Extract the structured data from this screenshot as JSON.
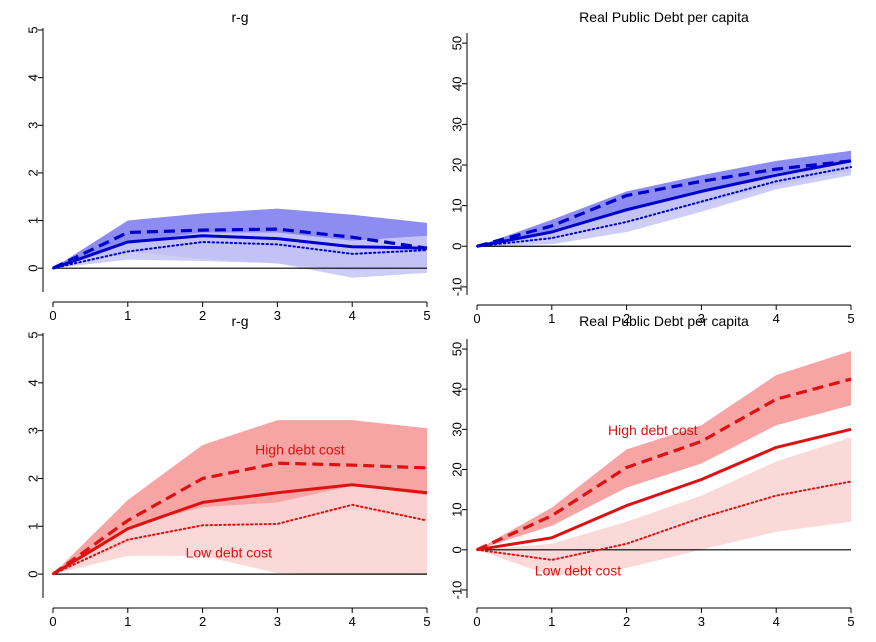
{
  "chart_data": [
    {
      "type": "line",
      "title": "r-g",
      "x": [
        0,
        1,
        2,
        3,
        4,
        5
      ],
      "xlim": [
        0,
        5
      ],
      "ylim": [
        -0.5,
        5
      ],
      "xticks": [
        "0",
        "1",
        "2",
        "3",
        "4",
        "5"
      ],
      "yticks": [
        "0",
        "1",
        "2",
        "3",
        "4",
        "5"
      ],
      "color": "#0000cc",
      "zero_line": true,
      "series": [
        {
          "style": "solid",
          "values": [
            0,
            0.55,
            0.68,
            0.62,
            0.45,
            0.42
          ]
        },
        {
          "style": "dashed",
          "values": [
            0,
            0.75,
            0.8,
            0.82,
            0.65,
            0.42
          ]
        },
        {
          "style": "dotted",
          "values": [
            0,
            0.35,
            0.55,
            0.5,
            0.3,
            0.38
          ]
        }
      ],
      "bands": [
        {
          "color": "#8080f0",
          "lower": [
            0,
            0.35,
            0.2,
            0.1,
            -0.05,
            0.0
          ],
          "upper": [
            0,
            1.0,
            1.15,
            1.25,
            1.12,
            0.95
          ]
        },
        {
          "color": "#c8c8f6",
          "lower": [
            0,
            0.18,
            0.15,
            0.1,
            -0.2,
            -0.1
          ],
          "upper": [
            0,
            0.55,
            0.75,
            0.75,
            0.58,
            0.68
          ]
        }
      ],
      "annotations": []
    },
    {
      "type": "line",
      "title": "Real Public Debt per capita",
      "x": [
        0,
        1,
        2,
        3,
        4,
        5
      ],
      "xlim": [
        0,
        5
      ],
      "ylim": [
        -12,
        52
      ],
      "xticks": [
        "0",
        "1",
        "2",
        "3",
        "4",
        "5"
      ],
      "yticks": [
        "-10",
        "0",
        "10",
        "20",
        "30",
        "40",
        "50"
      ],
      "color": "#0000cc",
      "zero_line": true,
      "series": [
        {
          "style": "solid",
          "values": [
            0,
            3.5,
            9,
            13.5,
            17.5,
            21
          ]
        },
        {
          "style": "dashed",
          "values": [
            0,
            5,
            12.5,
            16,
            19,
            21
          ]
        },
        {
          "style": "dotted",
          "values": [
            0,
            2,
            6,
            11,
            16,
            19.5
          ]
        }
      ],
      "bands": [
        {
          "color": "#8080f0",
          "lower": [
            0,
            2,
            6.5,
            10.5,
            15,
            18.5
          ],
          "upper": [
            0,
            6.5,
            13.5,
            17.5,
            21,
            23.5
          ]
        },
        {
          "color": "#c8c8f6",
          "lower": [
            0,
            0.5,
            3.5,
            8.5,
            14,
            17.5
          ],
          "upper": [
            0,
            3.5,
            8.5,
            13.5,
            18,
            21
          ]
        }
      ],
      "annotations": []
    },
    {
      "type": "line",
      "title": "r-g",
      "x": [
        0,
        1,
        2,
        3,
        4,
        5
      ],
      "xlim": [
        0,
        5
      ],
      "ylim": [
        -0.5,
        5
      ],
      "xticks": [
        "0",
        "1",
        "2",
        "3",
        "4",
        "5"
      ],
      "yticks": [
        "0",
        "1",
        "2",
        "3",
        "4",
        "5"
      ],
      "color": "#dd1111",
      "zero_line": true,
      "series": [
        {
          "style": "solid",
          "values": [
            0,
            0.95,
            1.5,
            1.7,
            1.87,
            1.7
          ]
        },
        {
          "style": "dashed",
          "values": [
            0,
            1.12,
            2.0,
            2.32,
            2.28,
            2.22
          ]
        },
        {
          "style": "dotted",
          "values": [
            0,
            0.72,
            1.02,
            1.05,
            1.45,
            1.12
          ]
        }
      ],
      "bands": [
        {
          "color": "#f59a9a",
          "lower": [
            0,
            0.65,
            1.0,
            1.1,
            1.35,
            1.15
          ],
          "upper": [
            0,
            1.55,
            2.7,
            3.22,
            3.22,
            3.05
          ]
        },
        {
          "color": "#fbd5d5",
          "lower": [
            0,
            0.38,
            0.38,
            0.02,
            0.0,
            0.0
          ],
          "upper": [
            0,
            1.0,
            1.4,
            1.5,
            1.85,
            1.65
          ]
        }
      ],
      "annotations": [
        {
          "text": "High debt cost",
          "x": 3.3,
          "y": 2.58
        },
        {
          "text": "Low debt cost",
          "x": 2.35,
          "y": 0.42
        }
      ]
    },
    {
      "type": "line",
      "title": "Real Public Debt per capita",
      "x": [
        0,
        1,
        2,
        3,
        4,
        5
      ],
      "xlim": [
        0,
        5
      ],
      "ylim": [
        -12,
        52
      ],
      "xticks": [
        "0",
        "1",
        "2",
        "3",
        "4",
        "5"
      ],
      "yticks": [
        "-10",
        "0",
        "10",
        "20",
        "30",
        "40",
        "50"
      ],
      "color": "#dd1111",
      "zero_line": true,
      "series": [
        {
          "style": "solid",
          "values": [
            0,
            3,
            11,
            17.5,
            25.5,
            30
          ]
        },
        {
          "style": "dashed",
          "values": [
            0,
            8.5,
            20.5,
            27,
            37.5,
            42.5
          ]
        },
        {
          "style": "dotted",
          "values": [
            0,
            -2.5,
            1.5,
            8,
            13.5,
            17
          ]
        }
      ],
      "bands": [
        {
          "color": "#f59a9a",
          "lower": [
            0,
            6,
            15.5,
            21.5,
            31,
            36
          ],
          "upper": [
            0,
            10.5,
            25,
            31,
            43.5,
            49.5
          ]
        },
        {
          "color": "#fbd5d5",
          "lower": [
            0,
            -6.5,
            -4.5,
            0,
            4.5,
            7
          ],
          "upper": [
            0,
            1.5,
            7,
            13.5,
            22,
            28
          ]
        }
      ],
      "annotations": [
        {
          "text": "High debt cost",
          "x": 2.35,
          "y": 29.5
        },
        {
          "text": "Low debt cost",
          "x": 1.35,
          "y": -5.5
        }
      ]
    }
  ]
}
